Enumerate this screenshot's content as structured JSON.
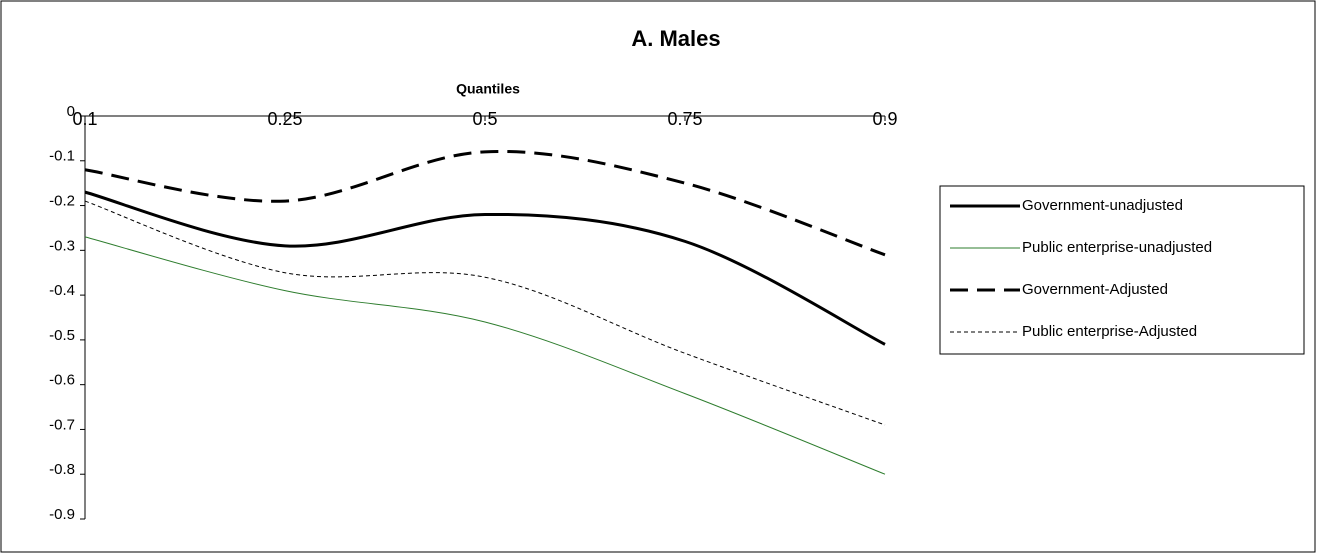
{
  "chart_data": {
    "type": "line",
    "title": "A. Males",
    "x_label": "Quantiles",
    "categories": [
      "0.1",
      "0.25",
      "0.5",
      "0.75",
      "0.9"
    ],
    "series": [
      {
        "name": "Government-unadjusted",
        "color": "#000000",
        "width": 3,
        "dash": "solid",
        "values": [
          -0.17,
          -0.29,
          -0.22,
          -0.28,
          -0.51
        ]
      },
      {
        "name": "Public enterprise-unadjusted",
        "color": "#2e7d2e",
        "width": 1,
        "dash": "solid",
        "values": [
          -0.27,
          -0.39,
          -0.46,
          -0.62,
          -0.8
        ]
      },
      {
        "name": "Government-Adjusted",
        "color": "#000000",
        "width": 3,
        "dash": "long",
        "values": [
          -0.12,
          -0.19,
          -0.08,
          -0.15,
          -0.31
        ]
      },
      {
        "name": "Public enterprise-Adjusted",
        "color": "#000000",
        "width": 1,
        "dash": "short",
        "values": [
          -0.19,
          -0.35,
          -0.36,
          -0.53,
          -0.69
        ]
      }
    ],
    "ylim": [
      -0.9,
      0
    ],
    "yticks": [
      0,
      -0.1,
      -0.2,
      -0.3,
      -0.4,
      -0.5,
      -0.6,
      -0.7,
      -0.8,
      -0.9
    ],
    "grid": false,
    "legend": "right",
    "smooth": true
  }
}
